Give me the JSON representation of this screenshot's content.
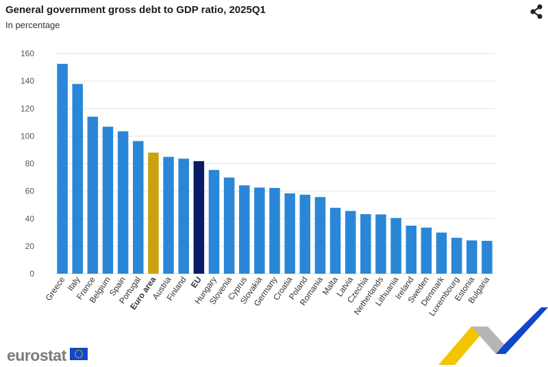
{
  "header": {
    "title": "General government gross debt to GDP ratio, 2025Q1",
    "subtitle": "In percentage"
  },
  "icons": {
    "share": "share-icon",
    "eu_flag": "eu-flag-icon"
  },
  "brand": {
    "name": "eurostat"
  },
  "colors": {
    "country": "#2a87d7",
    "euro_area": "#c9a20d",
    "eu": "#0b1a66",
    "grid": "#dde3ea",
    "axis": "#555555",
    "brand_yellow": "#f3c400",
    "brand_blue": "#0e47cb",
    "brand_grey": "#b5b5b5"
  },
  "chart_data": {
    "type": "bar",
    "title": "General government gross debt to GDP ratio, 2025Q1",
    "subtitle": "In percentage",
    "ylim": [
      0,
      160
    ],
    "yticks": [
      0,
      20,
      40,
      60,
      80,
      100,
      120,
      140,
      160
    ],
    "grid": true,
    "categories": [
      "Greece",
      "Italy",
      "France",
      "Belgium",
      "Spain",
      "Portugal",
      "Euro area",
      "Austria",
      "Finland",
      "EU",
      "Hungary",
      "Slovenia",
      "Cyprus",
      "Slovakia",
      "Germany",
      "Croatia",
      "Poland",
      "Romania",
      "Malta",
      "Latvia",
      "Czechia",
      "Netherlands",
      "Lithuania",
      "Ireland",
      "Sweden",
      "Denmark",
      "Luxembourg",
      "Estonia",
      "Bulgaria"
    ],
    "values": [
      152.5,
      137.9,
      114.1,
      106.8,
      103.5,
      96.4,
      88.0,
      84.9,
      83.6,
      81.8,
      75.4,
      69.9,
      64.2,
      62.6,
      62.3,
      58.4,
      57.4,
      55.7,
      47.9,
      45.6,
      43.3,
      43.1,
      40.5,
      34.9,
      33.5,
      29.9,
      26.1,
      24.2,
      23.9
    ],
    "highlight": {
      "Euro area": "euro_area",
      "EU": "eu"
    },
    "bold_labels": [
      "Euro area",
      "EU"
    ]
  }
}
